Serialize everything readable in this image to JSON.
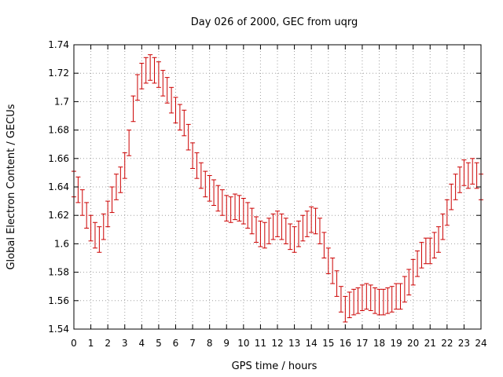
{
  "chart_data": {
    "type": "line",
    "title": "Day 026 of 2000, GEC from uqrg",
    "xlabel": "GPS time / hours",
    "ylabel": "Global Electron Content / GECUs",
    "xlim": [
      0,
      24
    ],
    "ylim": [
      1.54,
      1.74
    ],
    "x_ticks": [
      0,
      1,
      2,
      3,
      4,
      5,
      6,
      7,
      8,
      9,
      10,
      11,
      12,
      13,
      14,
      15,
      16,
      17,
      18,
      19,
      20,
      21,
      22,
      23,
      24
    ],
    "y_ticks": [
      1.54,
      1.56,
      1.58,
      1.6,
      1.62,
      1.64,
      1.66,
      1.68,
      1.7,
      1.72,
      1.74
    ],
    "grid": true,
    "series_color": "#cc0000",
    "error_half_width": 0.009,
    "series": [
      {
        "name": "GEC",
        "x": [
          0,
          0.25,
          0.5,
          0.75,
          1,
          1.25,
          1.5,
          1.75,
          2,
          2.25,
          2.5,
          2.75,
          3,
          3.25,
          3.5,
          3.75,
          4,
          4.25,
          4.5,
          4.75,
          5,
          5.25,
          5.5,
          5.75,
          6,
          6.25,
          6.5,
          6.75,
          7,
          7.25,
          7.5,
          7.75,
          8,
          8.25,
          8.5,
          8.75,
          9,
          9.25,
          9.5,
          9.75,
          10,
          10.25,
          10.5,
          10.75,
          11,
          11.25,
          11.5,
          11.75,
          12,
          12.25,
          12.5,
          12.75,
          13,
          13.25,
          13.5,
          13.75,
          14,
          14.25,
          14.5,
          14.75,
          15,
          15.25,
          15.5,
          15.75,
          16,
          16.25,
          16.5,
          16.75,
          17,
          17.25,
          17.5,
          17.75,
          18,
          18.25,
          18.5,
          18.75,
          19,
          19.25,
          19.5,
          19.75,
          20,
          20.25,
          20.5,
          20.75,
          21,
          21.25,
          21.5,
          21.75,
          22,
          22.25,
          22.5,
          22.75,
          23,
          23.25,
          23.5,
          23.75,
          24
        ],
        "y": [
          1.642,
          1.638,
          1.629,
          1.62,
          1.611,
          1.606,
          1.603,
          1.612,
          1.621,
          1.631,
          1.64,
          1.645,
          1.655,
          1.671,
          1.695,
          1.71,
          1.718,
          1.722,
          1.724,
          1.722,
          1.719,
          1.713,
          1.708,
          1.701,
          1.694,
          1.689,
          1.685,
          1.675,
          1.662,
          1.655,
          1.648,
          1.642,
          1.639,
          1.636,
          1.632,
          1.629,
          1.625,
          1.624,
          1.626,
          1.625,
          1.623,
          1.62,
          1.616,
          1.61,
          1.607,
          1.606,
          1.609,
          1.612,
          1.614,
          1.612,
          1.609,
          1.605,
          1.603,
          1.607,
          1.611,
          1.614,
          1.617,
          1.616,
          1.609,
          1.599,
          1.588,
          1.581,
          1.572,
          1.561,
          1.554,
          1.557,
          1.559,
          1.56,
          1.562,
          1.563,
          1.562,
          1.56,
          1.559,
          1.559,
          1.56,
          1.561,
          1.563,
          1.563,
          1.568,
          1.573,
          1.58,
          1.586,
          1.592,
          1.595,
          1.595,
          1.599,
          1.603,
          1.612,
          1.622,
          1.633,
          1.64,
          1.645,
          1.65,
          1.648,
          1.651,
          1.648,
          1.64
        ]
      }
    ]
  }
}
